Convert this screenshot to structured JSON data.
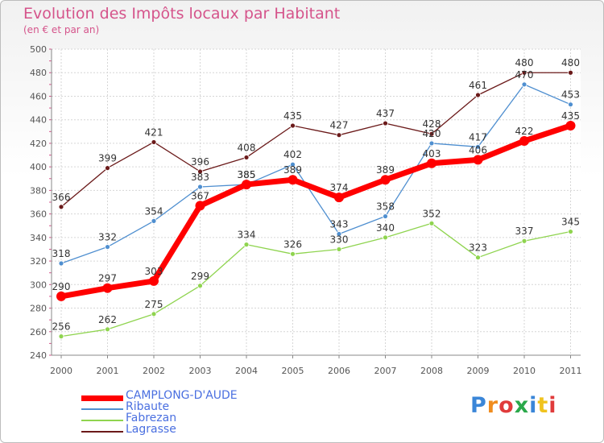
{
  "title": "Evolution des Impôts locaux par Habitant",
  "subtitle": "(en € et par an)",
  "logo_text": "Proxiti",
  "chart_data": {
    "type": "line",
    "title": "Evolution des Impôts locaux par Habitant",
    "subtitle": "(en € et par an)",
    "xlabel": "",
    "ylabel": "",
    "categories": [
      "2000",
      "2001",
      "2002",
      "2003",
      "2004",
      "2005",
      "2006",
      "2007",
      "2008",
      "2009",
      "2010",
      "2011"
    ],
    "ylim": [
      240,
      500
    ],
    "yticks": [
      240,
      260,
      280,
      300,
      320,
      340,
      360,
      380,
      400,
      420,
      440,
      460,
      480,
      500
    ],
    "grid": true,
    "legend_position": "bottom-left",
    "series": [
      {
        "name": "CAMPLONG-D'AUDE",
        "color": "#ff0000",
        "values": [
          290,
          297,
          303,
          367,
          385,
          389,
          374,
          389,
          403,
          406,
          422,
          435
        ]
      },
      {
        "name": "Ribaute",
        "color": "#4f8fd0",
        "values": [
          318,
          332,
          354,
          383,
          385,
          402,
          343,
          358,
          420,
          417,
          470,
          453
        ]
      },
      {
        "name": "Fabrezan",
        "color": "#8fd44f",
        "values": [
          256,
          262,
          275,
          299,
          334,
          326,
          330,
          340,
          352,
          323,
          337,
          345
        ]
      },
      {
        "name": "Lagrasse",
        "color": "#6b1a1a",
        "values": [
          366,
          399,
          421,
          396,
          408,
          435,
          427,
          437,
          428,
          461,
          480,
          480
        ]
      }
    ]
  }
}
